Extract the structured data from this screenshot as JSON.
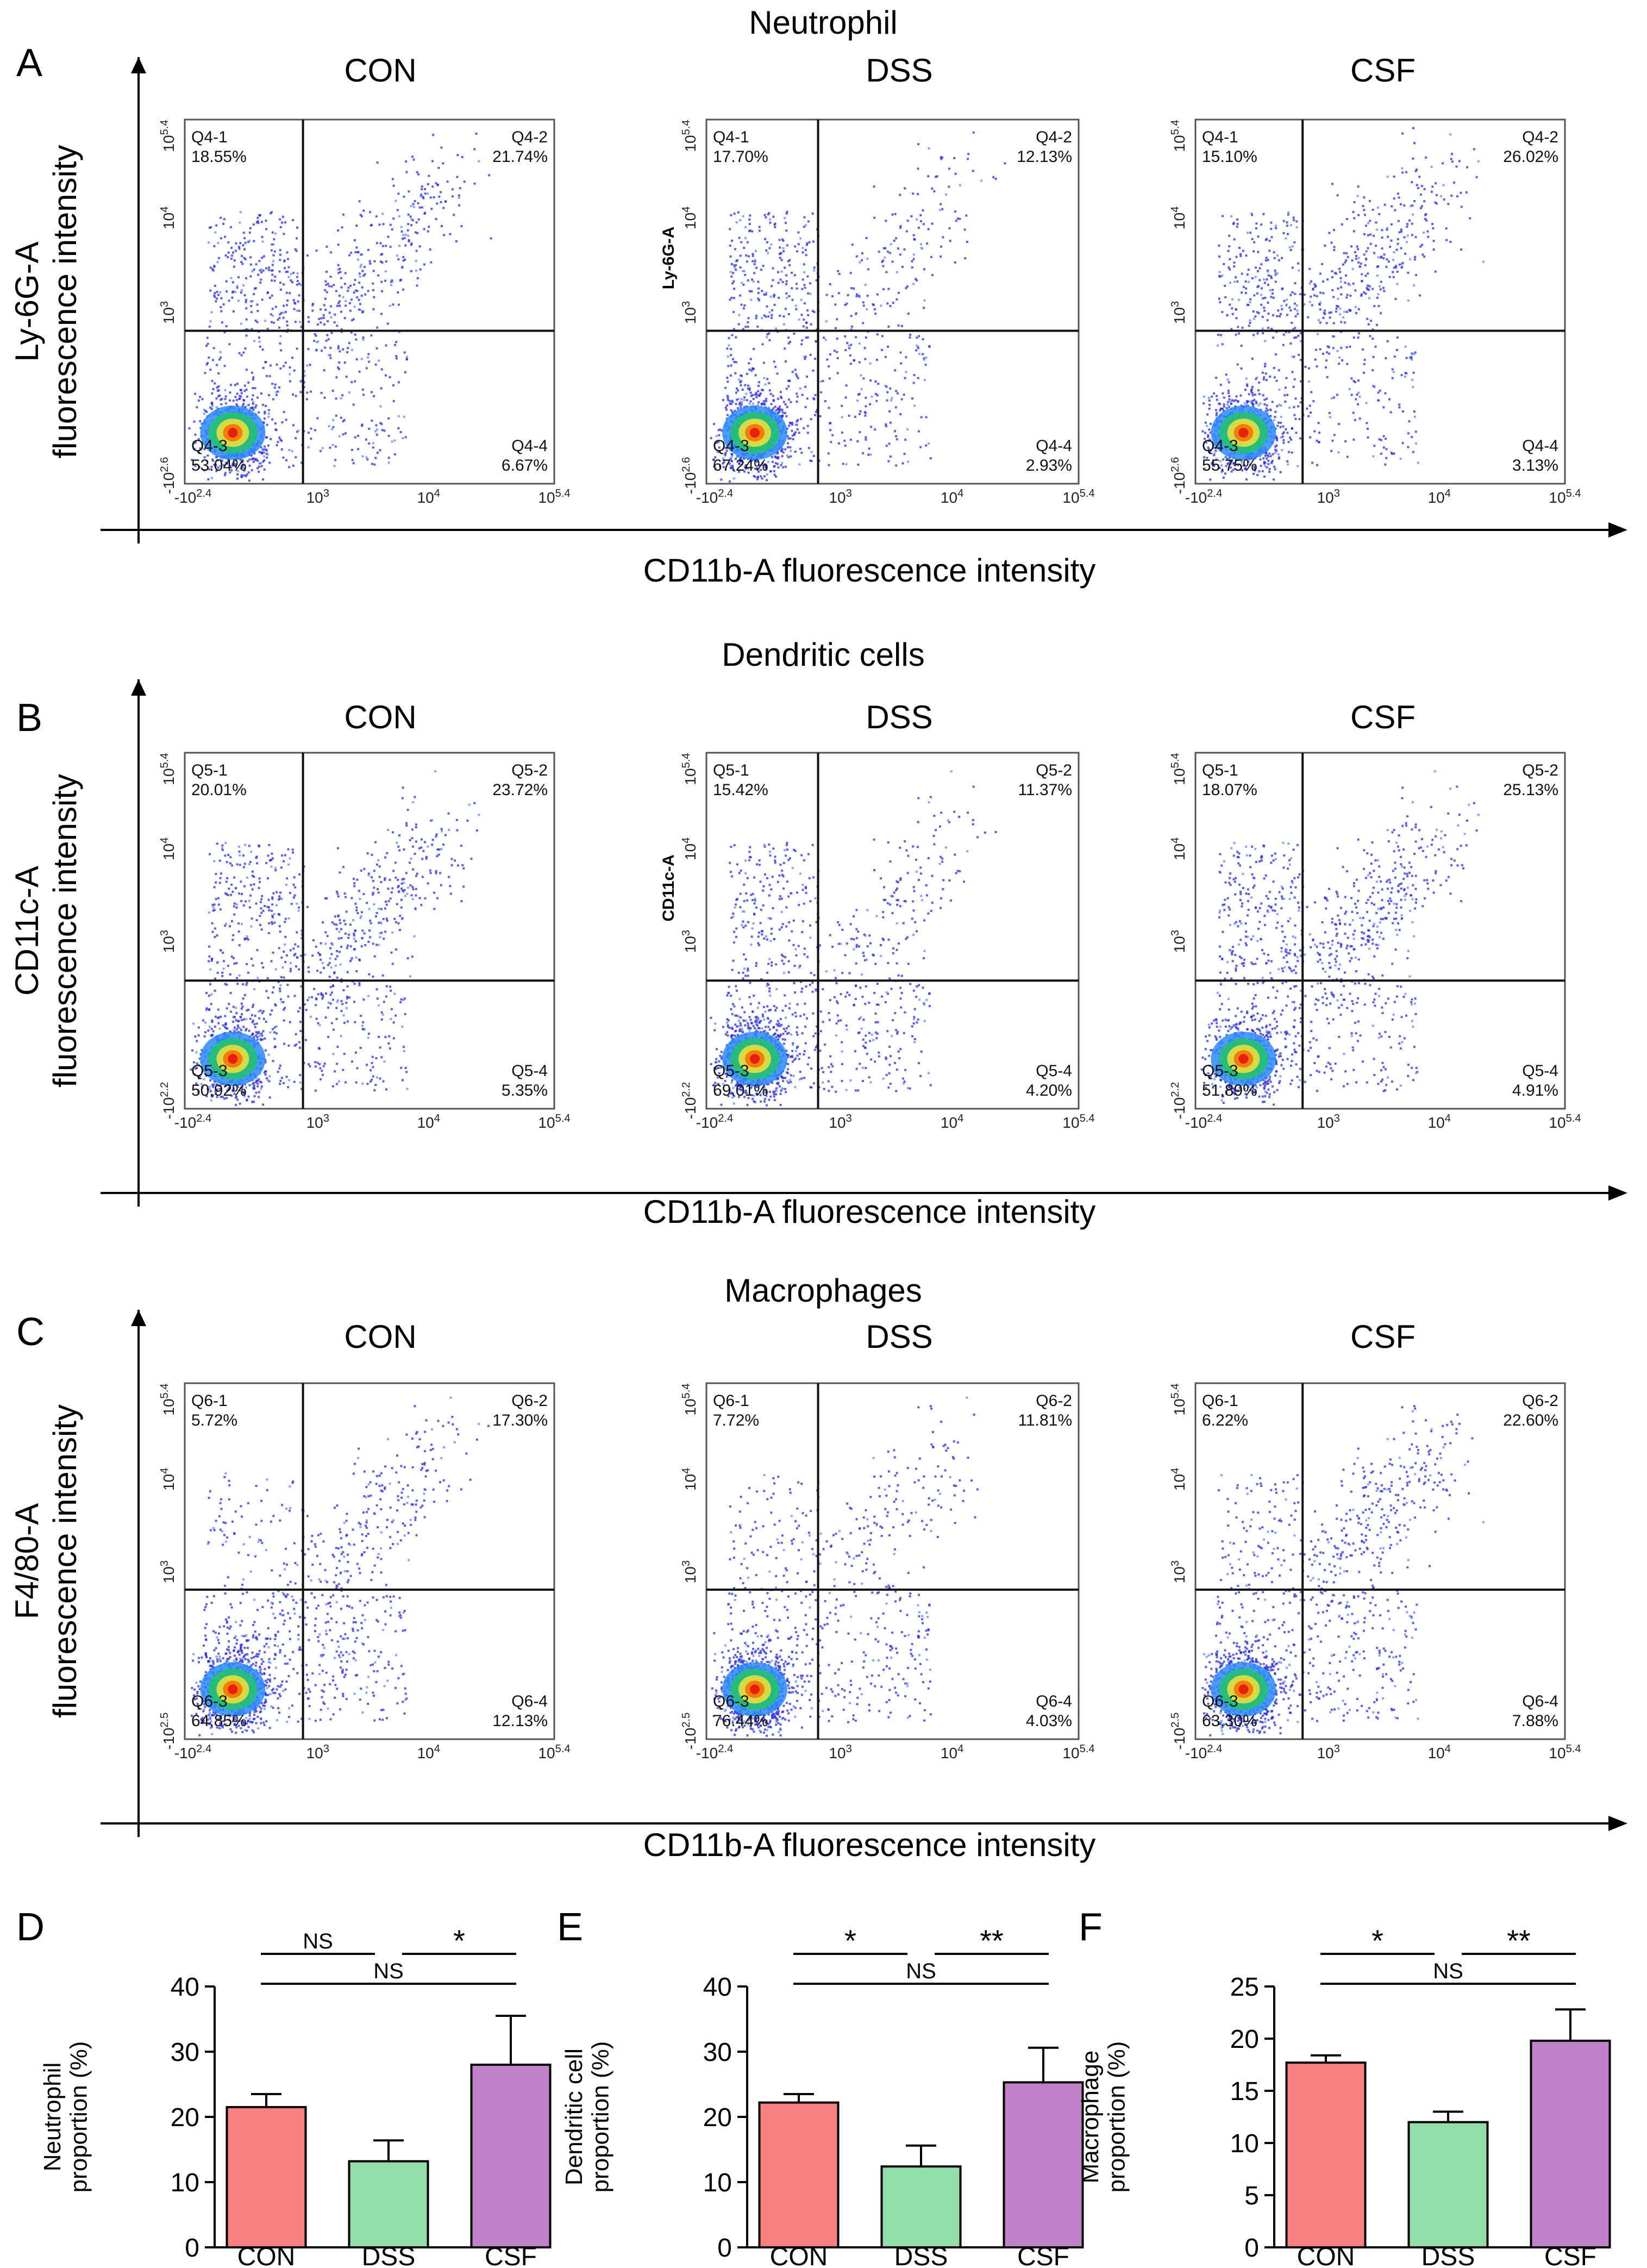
{
  "figure": {
    "panel_letters": [
      "A",
      "B",
      "C",
      "D",
      "E",
      "F"
    ],
    "rows": [
      {
        "letter": "A",
        "title": "Neutrophil",
        "ylabel_line1": "Ly-6G-A",
        "ylabel_line2": "fluorescence intensity",
        "xlabel": "CD11b-A fluorescence intensity",
        "prefix": "Q4",
        "inner_ylabel": "Ly-6G-A",
        "ticks": {
          "y_top": "10^5.4",
          "y_mid1": "10^4",
          "y_mid2": "10^3",
          "y_bot": "-10^2.6",
          "x_left": "-10^2.4",
          "x_mid1": "10^3",
          "x_mid2": "10^4",
          "x_right": "10^5.4"
        }
      },
      {
        "letter": "B",
        "title": "Dendritic cells",
        "ylabel_line1": "CD11c-A",
        "ylabel_line2": "fluorescence intensity",
        "xlabel": "CD11b-A fluorescence intensity",
        "prefix": "Q5",
        "inner_ylabel": "CD11c-A",
        "ticks": {
          "y_top": "10^5.4",
          "y_mid1": "10^4",
          "y_mid2": "10^3",
          "y_bot": "-10^2.2",
          "x_left": "-10^2.4",
          "x_mid1": "10^3",
          "x_mid2": "10^4",
          "x_right": "10^5.4"
        }
      },
      {
        "letter": "C",
        "title": "Macrophages",
        "ylabel_line1": "F4/80-A",
        "ylabel_line2": "fluorescence intensity",
        "xlabel": "CD11b-A fluorescence intensity",
        "prefix": "Q6",
        "inner_ylabel": "",
        "ticks": {
          "y_top": "10^5.4",
          "y_mid1": "10^4",
          "y_mid2": "10^3",
          "y_bot": "-10^2.5",
          "x_left": "-10^2.4",
          "x_mid1": "10^3",
          "x_mid2": "10^4",
          "x_right": "10^5.4"
        }
      }
    ]
  },
  "chart_data": [
    {
      "type": "scatter",
      "panel": "A",
      "group": "CON",
      "quadrants": {
        "Q4-1": "18.55%",
        "Q4-2": "21.74%",
        "Q4-3": "53.04%",
        "Q4-4": "6.67%"
      }
    },
    {
      "type": "scatter",
      "panel": "A",
      "group": "DSS",
      "quadrants": {
        "Q4-1": "17.70%",
        "Q4-2": "12.13%",
        "Q4-3": "67.24%",
        "Q4-4": "2.93%"
      }
    },
    {
      "type": "scatter",
      "panel": "A",
      "group": "CSF",
      "quadrants": {
        "Q4-1": "15.10%",
        "Q4-2": "26.02%",
        "Q4-3": "55.75%",
        "Q4-4": "3.13%"
      }
    },
    {
      "type": "scatter",
      "panel": "B",
      "group": "CON",
      "quadrants": {
        "Q5-1": "20.01%",
        "Q5-2": "23.72%",
        "Q5-3": "50.92%",
        "Q5-4": "5.35%"
      }
    },
    {
      "type": "scatter",
      "panel": "B",
      "group": "DSS",
      "quadrants": {
        "Q5-1": "15.42%",
        "Q5-2": "11.37%",
        "Q5-3": "69.01%",
        "Q5-4": "4.20%"
      }
    },
    {
      "type": "scatter",
      "panel": "B",
      "group": "CSF",
      "quadrants": {
        "Q5-1": "18.07%",
        "Q5-2": "25.13%",
        "Q5-3": "51.89%",
        "Q5-4": "4.91%"
      }
    },
    {
      "type": "scatter",
      "panel": "C",
      "group": "CON",
      "quadrants": {
        "Q6-1": "5.72%",
        "Q6-2": "17.30%",
        "Q6-3": "64.85%",
        "Q6-4": "12.13%"
      }
    },
    {
      "type": "scatter",
      "panel": "C",
      "group": "DSS",
      "quadrants": {
        "Q6-1": "7.72%",
        "Q6-2": "11.81%",
        "Q6-3": "76.44%",
        "Q6-4": "4.03%"
      }
    },
    {
      "type": "scatter",
      "panel": "C",
      "group": "CSF",
      "quadrants": {
        "Q6-1": "6.22%",
        "Q6-2": "22.60%",
        "Q6-3": "63.30%",
        "Q6-4": "7.88%"
      }
    },
    {
      "type": "bar",
      "panel": "D",
      "ylabel": "Neutrophil proportion (%)",
      "categories": [
        "CON",
        "DSS",
        "CSF"
      ],
      "values": [
        21.5,
        13.2,
        28
      ],
      "errors": [
        2,
        3.2,
        7.5
      ],
      "ylim": [
        0,
        40
      ],
      "yticks": [
        0,
        10,
        20,
        30,
        40
      ],
      "colors": [
        "#f98080",
        "#93dea8",
        "#c081c8"
      ],
      "significance": [
        {
          "from": 0,
          "to": 1,
          "label": "NS",
          "level": 1
        },
        {
          "from": 1,
          "to": 2,
          "label": "*",
          "level": 1
        },
        {
          "from": 0,
          "to": 2,
          "label": "NS",
          "level": 2
        }
      ]
    },
    {
      "type": "bar",
      "panel": "E",
      "ylabel": "Dendritic cell proportion (%)",
      "categories": [
        "CON",
        "DSS",
        "CSF"
      ],
      "values": [
        22.2,
        12.4,
        25.3
      ],
      "errors": [
        1.3,
        3.2,
        5.3
      ],
      "ylim": [
        0,
        40
      ],
      "yticks": [
        0,
        10,
        20,
        30,
        40
      ],
      "colors": [
        "#f98080",
        "#93dea8",
        "#c081c8"
      ],
      "significance": [
        {
          "from": 0,
          "to": 1,
          "label": "*",
          "level": 1
        },
        {
          "from": 1,
          "to": 2,
          "label": "**",
          "level": 1
        },
        {
          "from": 0,
          "to": 2,
          "label": "NS",
          "level": 2
        }
      ]
    },
    {
      "type": "bar",
      "panel": "F",
      "ylabel": "Macrophage proportion (%)",
      "categories": [
        "CON",
        "DSS",
        "CSF"
      ],
      "values": [
        17.7,
        12,
        19.8
      ],
      "errors": [
        0.7,
        1,
        3
      ],
      "ylim": [
        0,
        25
      ],
      "yticks": [
        0,
        5,
        10,
        15,
        20,
        25
      ],
      "colors": [
        "#f98080",
        "#93dea8",
        "#c081c8"
      ],
      "significance": [
        {
          "from": 0,
          "to": 1,
          "label": "*",
          "level": 1
        },
        {
          "from": 1,
          "to": 2,
          "label": "**",
          "level": 1
        },
        {
          "from": 0,
          "to": 2,
          "label": "NS",
          "level": 2
        }
      ]
    }
  ]
}
